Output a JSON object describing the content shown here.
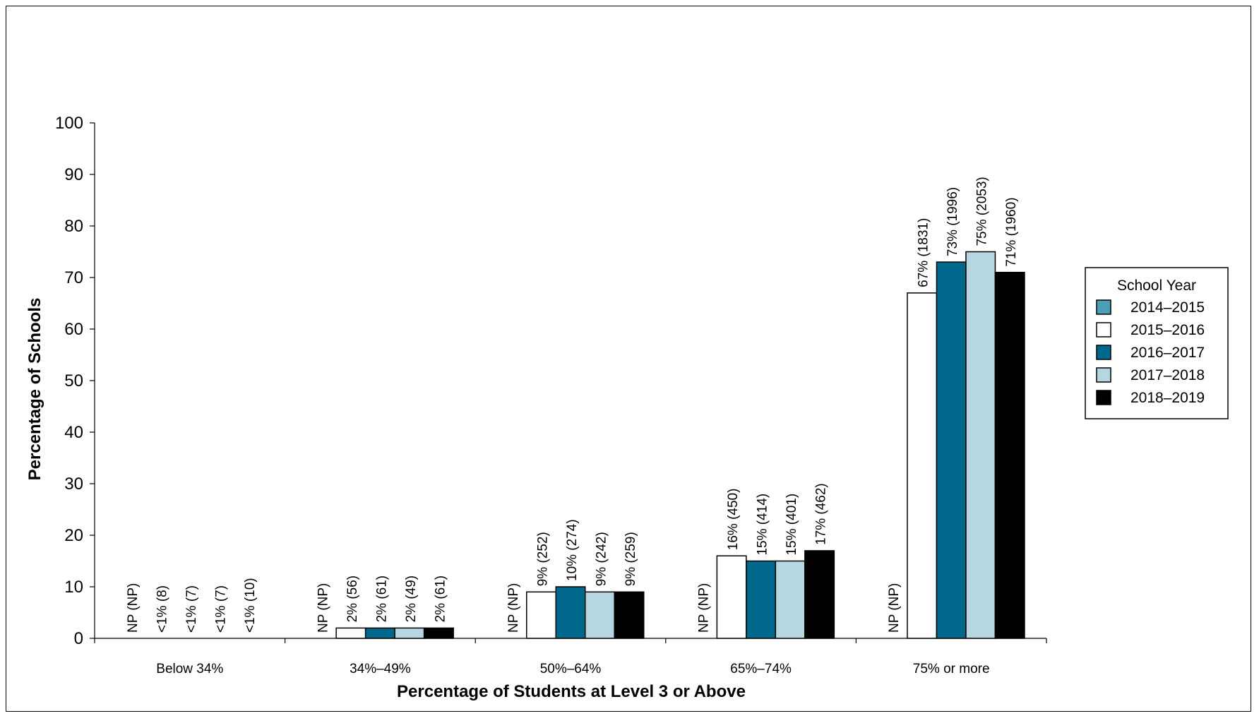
{
  "chart_data": {
    "type": "bar",
    "title": "",
    "xlabel": "Percentage of Students at Level 3 or Above",
    "ylabel": "Percentage of Schools",
    "ylim": [
      0,
      100
    ],
    "yticks": [
      0,
      10,
      20,
      30,
      40,
      50,
      60,
      70,
      80,
      90,
      100
    ],
    "categories": [
      "Below 34%",
      "34%–49%",
      "50%–64%",
      "65%–74%",
      "75% or more"
    ],
    "legend": {
      "title": "School Year",
      "position": "right"
    },
    "series": [
      {
        "name": "2014–2015",
        "color": "#4d9fb8",
        "values": [
          null,
          null,
          null,
          null,
          null
        ],
        "labels": [
          "NP (NP)",
          "NP (NP)",
          "NP (NP)",
          "NP (NP)",
          "NP (NP)"
        ]
      },
      {
        "name": "2015–2016",
        "color": "#ffffff",
        "values": [
          0,
          2,
          9,
          16,
          67
        ],
        "labels": [
          "<1% (8)",
          "2% (56)",
          "9% (252)",
          "16% (450)",
          "67% (1831)"
        ]
      },
      {
        "name": "2016–2017",
        "color": "#00688b",
        "values": [
          0,
          2,
          10,
          15,
          73
        ],
        "labels": [
          "<1% (7)",
          "2% (61)",
          "10% (274)",
          "15% (414)",
          "73% (1996)"
        ]
      },
      {
        "name": "2017–2018",
        "color": "#b6d7e2",
        "values": [
          0,
          2,
          9,
          15,
          75
        ],
        "labels": [
          "<1% (7)",
          "2% (49)",
          "9% (242)",
          "15% (401)",
          "75% (2053)"
        ]
      },
      {
        "name": "2018–2019",
        "color": "#000000",
        "values": [
          0,
          2,
          9,
          17,
          71
        ],
        "labels": [
          "<1% (10)",
          "2% (61)",
          "9% (259)",
          "17% (462)",
          "71% (1960)"
        ]
      }
    ]
  }
}
